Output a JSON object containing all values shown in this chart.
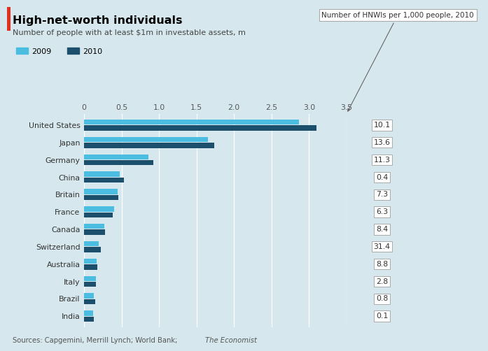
{
  "title": "High-net-worth individuals",
  "subtitle": "Number of people with at least $1m in investable assets, m",
  "source": "Sources: Capgemini, Merrill Lynch; World Bank;  The Economist",
  "countries": [
    "United States",
    "Japan",
    "Germany",
    "China",
    "Britain",
    "France",
    "Canada",
    "Switzerland",
    "Australia",
    "Italy",
    "Brazil",
    "India"
  ],
  "values_2009": [
    2.87,
    1.65,
    0.86,
    0.48,
    0.45,
    0.4,
    0.27,
    0.2,
    0.17,
    0.155,
    0.13,
    0.12
  ],
  "values_2010": [
    3.1,
    1.74,
    0.924,
    0.535,
    0.454,
    0.385,
    0.282,
    0.222,
    0.174,
    0.154,
    0.145,
    0.126
  ],
  "hnwi_per_1000": [
    10.1,
    13.6,
    11.3,
    0.4,
    7.3,
    6.3,
    8.4,
    31.4,
    8.8,
    2.8,
    0.8,
    0.1
  ],
  "color_2009": "#4BBDE0",
  "color_2010": "#1B4F6B",
  "background_color": "#D6E8EE",
  "annotation_box_label": "Number of HNWIs per 1,000 people, 2010",
  "xlim": [
    0,
    3.5
  ],
  "xticks": [
    0,
    0.5,
    1.0,
    1.5,
    2.0,
    2.5,
    3.0,
    3.5
  ],
  "xtick_labels": [
    "0",
    "0.5",
    "1.0",
    "1.5",
    "2.0",
    "2.5",
    "3.0",
    "3.5"
  ]
}
